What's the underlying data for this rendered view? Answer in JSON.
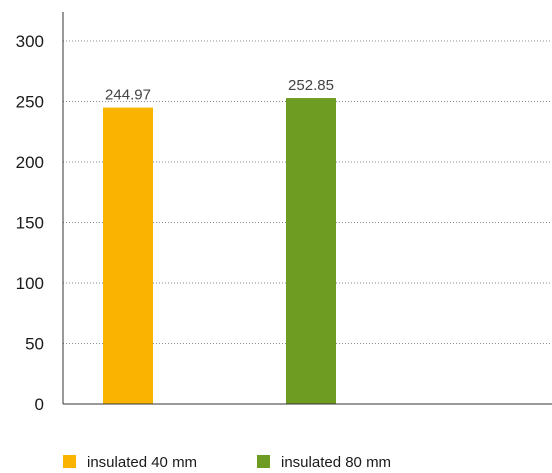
{
  "chart_data": {
    "type": "bar",
    "title": "",
    "xlabel": "",
    "ylabel": "",
    "ylim": [
      0,
      300
    ],
    "yticks": [
      0,
      50,
      100,
      150,
      200,
      250,
      300
    ],
    "grid": "horizontal dotted",
    "legend_position": "bottom",
    "show_data_labels": true,
    "series": [
      {
        "name": "insulated 40 mm",
        "value": 244.97,
        "value_label": "244.97",
        "color": "#f8b400"
      },
      {
        "name": "insulated 80 mm",
        "value": 252.85,
        "value_label": "252.85",
        "color": "#6e9b22"
      }
    ]
  }
}
